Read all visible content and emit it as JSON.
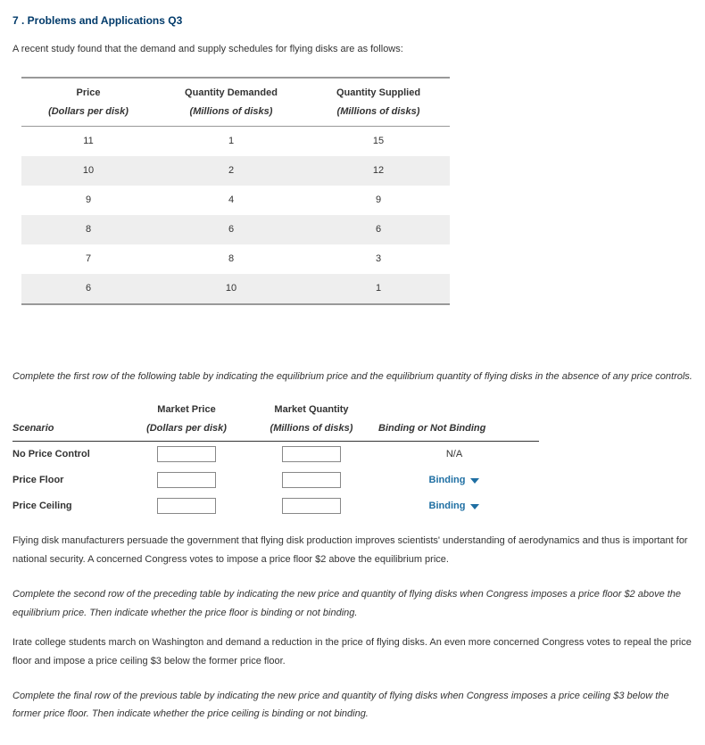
{
  "heading": "7 . Problems and Applications Q3",
  "intro": "A recent study found that the demand and supply schedules for flying disks are as follows:",
  "dataTable": {
    "columns": [
      {
        "line1": "Price",
        "line2": "(Dollars per disk)"
      },
      {
        "line1": "Quantity Demanded",
        "line2": "(Millions of disks)"
      },
      {
        "line1": "Quantity Supplied",
        "line2": "(Millions of disks)"
      }
    ],
    "rows": [
      [
        "11",
        "1",
        "15"
      ],
      [
        "10",
        "2",
        "12"
      ],
      [
        "9",
        "4",
        "9"
      ],
      [
        "8",
        "6",
        "6"
      ],
      [
        "7",
        "8",
        "3"
      ],
      [
        "6",
        "10",
        "1"
      ]
    ],
    "header_border_color": "#999999",
    "alt_row_bg": "#eeeeee"
  },
  "instr1": "Complete the first row of the following table by indicating the equilibrium price and the equilibrium quantity of flying disks in the absence of any price controls.",
  "scenarioTable": {
    "headers": {
      "scenario": "Scenario",
      "price_top": "Market Price",
      "price_sub": "(Dollars per disk)",
      "qty_top": "Market Quantity",
      "qty_sub": "(Millions of disks)",
      "binding": "Binding or Not Binding"
    },
    "rows": [
      {
        "label": "No Price Control",
        "binding_type": "na",
        "binding_text": "N/A"
      },
      {
        "label": "Price Floor",
        "binding_type": "dropdown",
        "binding_text": "Binding"
      },
      {
        "label": "Price Ceiling",
        "binding_type": "dropdown",
        "binding_text": "Binding"
      }
    ],
    "dropdown_color": "#1f6fa3"
  },
  "para1": "Flying disk manufacturers persuade the government that flying disk production improves scientists' understanding of aerodynamics and thus is important for national security. A concerned Congress votes to impose a price floor $2 above the equilibrium price.",
  "instr2": "Complete the second row of the preceding table by indicating the new price and quantity of flying disks when Congress imposes a price floor $2 above the equilibrium price. Then indicate whether the price floor is binding or not binding.",
  "para2": "Irate college students march on Washington and demand a reduction in the price of flying disks. An even more concerned Congress votes to repeal the price floor and impose a price ceiling $3 below the former price floor.",
  "instr3": "Complete the final row of the previous table by indicating the new price and quantity of flying disks when Congress imposes a price ceiling $3 below the former price floor. Then indicate whether the price ceiling is binding or not binding."
}
